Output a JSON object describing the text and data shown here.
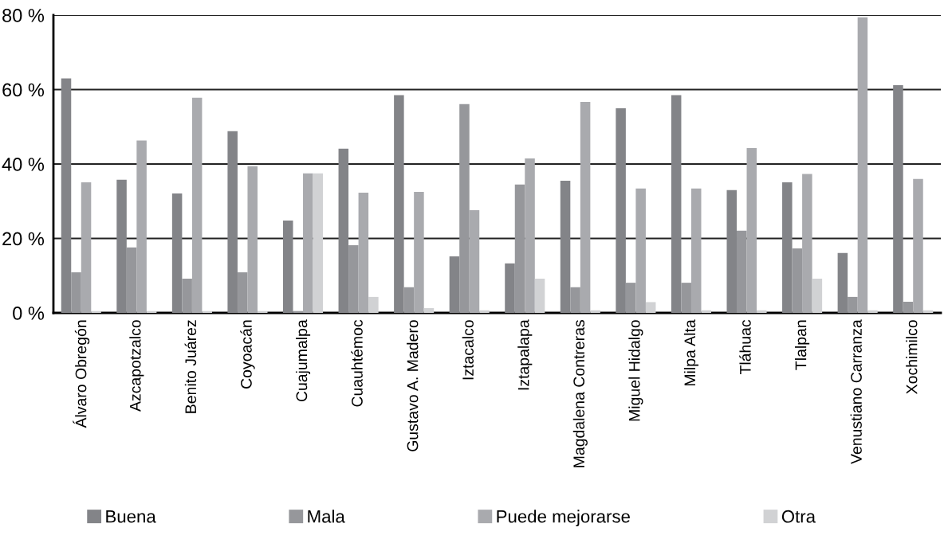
{
  "chart_data": {
    "type": "bar",
    "categories": [
      "Álvaro Obregón",
      "Azcapotzalco",
      "Benito Juárez",
      "Coyoacán",
      "Cuajumalpa",
      "Cuauhtémoc",
      "Gustavo A. Madero",
      "Iztacalco",
      "Iztapalapa",
      "Magdalena Contreras",
      "Miguel Hidalgo",
      "Milpa Alta",
      "Tláhuac",
      "Tlalpan",
      "Venustiano Carranza",
      "Xochimilco"
    ],
    "series": [
      {
        "name": "Buena",
        "color": "#838488",
        "values": [
          63.0,
          35.8,
          32.1,
          48.8,
          24.8,
          44.1,
          58.5,
          15.2,
          13.3,
          35.5,
          55.0,
          58.5,
          33.0,
          35.1,
          16.1,
          61.2
        ]
      },
      {
        "name": "Mala",
        "color": "#96979b",
        "values": [
          10.9,
          17.6,
          9.2,
          10.9,
          0.5,
          18.2,
          6.9,
          56.1,
          34.5,
          6.9,
          8.1,
          8.1,
          22.1,
          17.3,
          4.3,
          3.0
        ]
      },
      {
        "name": "Puede mejorarse",
        "color": "#a9aaae",
        "values": [
          35.1,
          46.3,
          57.8,
          39.4,
          37.5,
          32.3,
          32.5,
          27.6,
          41.5,
          56.7,
          33.4,
          33.4,
          44.3,
          37.3,
          79.4,
          36.0
        ]
      },
      {
        "name": "Otra",
        "color": "#d1d2d4",
        "values": [
          0.5,
          0.5,
          0.5,
          0.5,
          37.5,
          4.3,
          1.3,
          0.7,
          9.2,
          0.7,
          2.9,
          0.7,
          0.7,
          9.2,
          0.7,
          0.7
        ]
      }
    ],
    "ylim": [
      0,
      80
    ],
    "yticks": [
      {
        "value": 0,
        "label": "0 %"
      },
      {
        "value": 20,
        "label": "20 %"
      },
      {
        "value": 40,
        "label": "40 %"
      },
      {
        "value": 60,
        "label": "60 %"
      },
      {
        "value": 80,
        "label": "80 %"
      }
    ],
    "grid": "y",
    "legend": "bottom"
  }
}
